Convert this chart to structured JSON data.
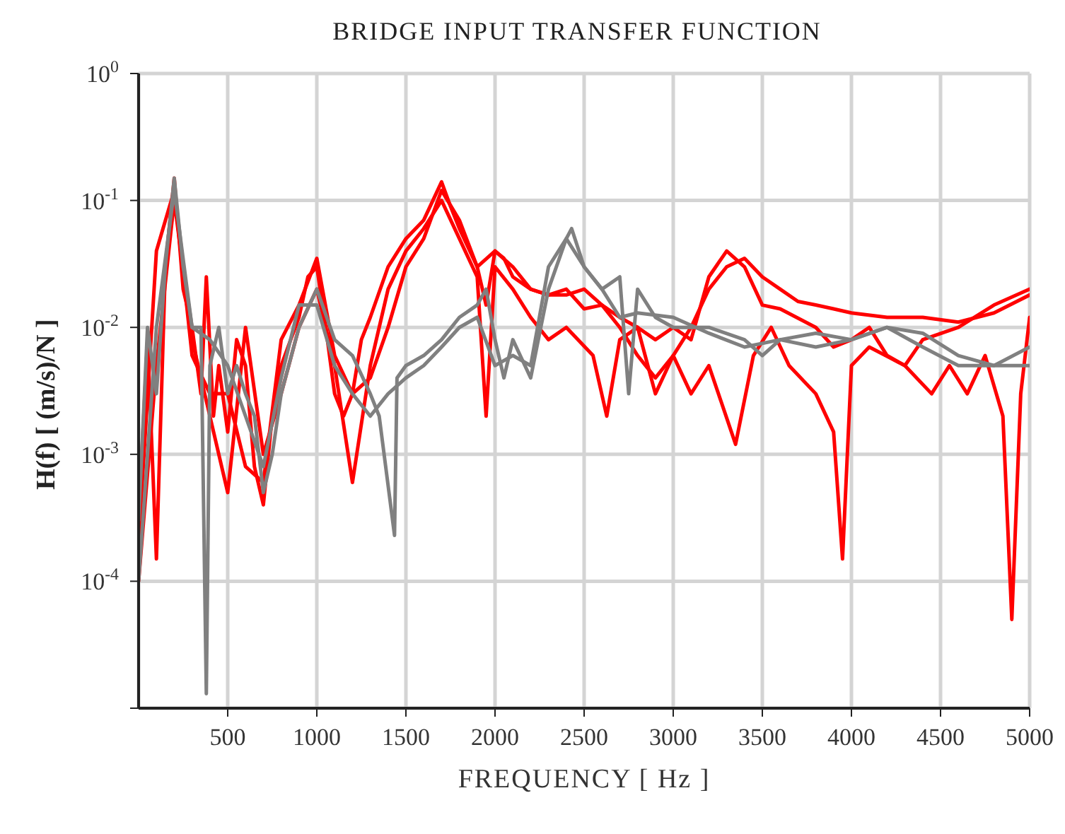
{
  "chart_data": {
    "type": "line",
    "title": "BRIDGE INPUT TRANSFER FUNCTION",
    "xlabel": "FREQUENCY [ Hz ]",
    "ylabel": "H(f) [ (m/s)/N ]",
    "xlim": [
      0,
      5000
    ],
    "xticks": [
      500,
      1000,
      1500,
      2000,
      2500,
      3000,
      3500,
      4000,
      4500,
      5000
    ],
    "ylim": [
      1e-05,
      1
    ],
    "log": "y",
    "yticks": [
      {
        "value": 1e-05,
        "label": null
      },
      {
        "value": 0.0001,
        "label": "10$^{-4}$"
      },
      {
        "value": 0.001,
        "label": "10$^{-3}$"
      },
      {
        "value": 0.01,
        "label": "10$^{-2}$"
      },
      {
        "value": 0.1,
        "label": "10$^{-1}$"
      },
      {
        "value": 1,
        "label": "10$^{0}$"
      }
    ],
    "grid": true,
    "legend": false,
    "marker": "none",
    "line_style": "solid",
    "series": [
      {
        "color": "#ff0000",
        "x": [
          0,
          50,
          100,
          150,
          200,
          250,
          300,
          350,
          380,
          420,
          450,
          500,
          550,
          600,
          650,
          700,
          750,
          800,
          900,
          950,
          1000,
          1050,
          1100,
          1150,
          1200,
          1250,
          1300,
          1400,
          1500,
          1600,
          1700,
          1750,
          1800,
          1900,
          1950,
          2000,
          2050,
          2100,
          2200,
          2300,
          2400,
          2500,
          2600,
          2700,
          2800,
          2900,
          3000,
          3100,
          3200,
          3300,
          3400,
          3500,
          3600,
          3700,
          3800,
          3900,
          4000,
          4200,
          4400,
          4600,
          4800,
          5000
        ],
        "values": [
          0.0003,
          0.008,
          0.00015,
          0.03,
          0.15,
          0.02,
          0.01,
          0.003,
          0.025,
          0.002,
          0.005,
          0.0015,
          0.008,
          0.005,
          0.0008,
          0.0004,
          0.002,
          0.005,
          0.012,
          0.025,
          0.03,
          0.01,
          0.003,
          0.002,
          0.003,
          0.008,
          0.012,
          0.03,
          0.05,
          0.07,
          0.14,
          0.09,
          0.06,
          0.03,
          0.015,
          0.04,
          0.035,
          0.025,
          0.02,
          0.018,
          0.018,
          0.02,
          0.015,
          0.01,
          0.006,
          0.004,
          0.006,
          0.01,
          0.02,
          0.03,
          0.035,
          0.025,
          0.02,
          0.016,
          0.015,
          0.014,
          0.013,
          0.012,
          0.012,
          0.011,
          0.013,
          0.018
        ]
      },
      {
        "color": "#ff0000",
        "x": [
          0,
          100,
          200,
          300,
          400,
          500,
          600,
          700,
          800,
          900,
          1000,
          1100,
          1200,
          1300,
          1400,
          1500,
          1600,
          1700,
          1800,
          1900,
          1950,
          2000,
          2100,
          2200,
          2300,
          2400,
          2550,
          2627,
          2700,
          2800,
          2900,
          3000,
          3100,
          3200,
          3350,
          3450,
          3550,
          3650,
          3800,
          3900,
          3950,
          4000,
          4100,
          4300,
          4450,
          4550,
          4650,
          4750,
          4850,
          4900,
          4950,
          5000
        ],
        "values": [
          0.0001,
          0.005,
          0.1,
          0.008,
          0.002,
          0.0005,
          0.01,
          0.001,
          0.003,
          0.01,
          0.02,
          0.005,
          0.0006,
          0.005,
          0.02,
          0.04,
          0.06,
          0.1,
          0.05,
          0.025,
          0.002,
          0.03,
          0.02,
          0.012,
          0.008,
          0.01,
          0.006,
          0.002,
          0.008,
          0.01,
          0.003,
          0.006,
          0.003,
          0.005,
          0.0012,
          0.006,
          0.01,
          0.005,
          0.003,
          0.0015,
          0.00015,
          0.005,
          0.007,
          0.005,
          0.003,
          0.005,
          0.003,
          0.006,
          0.002,
          5e-05,
          0.003,
          0.012
        ]
      },
      {
        "color": "#ff0000",
        "x": [
          0,
          100,
          200,
          300,
          400,
          500,
          600,
          700,
          800,
          900,
          1000,
          1100,
          1200,
          1300,
          1400,
          1500,
          1600,
          1700,
          1800,
          1900,
          2000,
          2100,
          2200,
          2300,
          2400,
          2500,
          2600,
          2700,
          2800,
          2900,
          3000,
          3100,
          3200,
          3300,
          3400,
          3500,
          3600,
          3800,
          3900,
          4000,
          4100,
          4200,
          4300,
          4400,
          4600,
          4800,
          5000
        ],
        "values": [
          0.0002,
          0.04,
          0.12,
          0.006,
          0.003,
          0.003,
          0.0008,
          0.0006,
          0.008,
          0.015,
          0.035,
          0.006,
          0.003,
          0.004,
          0.01,
          0.03,
          0.05,
          0.12,
          0.07,
          0.03,
          0.04,
          0.03,
          0.02,
          0.018,
          0.02,
          0.014,
          0.015,
          0.012,
          0.01,
          0.008,
          0.01,
          0.008,
          0.025,
          0.04,
          0.03,
          0.015,
          0.014,
          0.01,
          0.007,
          0.008,
          0.01,
          0.006,
          0.005,
          0.008,
          0.01,
          0.015,
          0.02
        ]
      },
      {
        "color": "#808080",
        "x": [
          0,
          50,
          100,
          150,
          200,
          250,
          300,
          350,
          380,
          400,
          450,
          500,
          550,
          600,
          650,
          700,
          750,
          800,
          900,
          1000,
          1100,
          1200,
          1300,
          1350,
          1436,
          1450,
          1500,
          1600,
          1700,
          1800,
          1900,
          1950,
          2000,
          2050,
          2100,
          2200,
          2300,
          2400,
          2430,
          2500,
          2600,
          2700,
          2750,
          2800,
          2900,
          3000,
          3200,
          3400,
          3500,
          3600,
          3800,
          4000,
          4200,
          4400,
          4600,
          4800,
          5000
        ],
        "values": [
          0.0003,
          0.01,
          0.003,
          0.03,
          0.15,
          0.03,
          0.01,
          0.01,
          1.3e-05,
          0.005,
          0.01,
          0.003,
          0.005,
          0.003,
          0.002,
          0.0005,
          0.001,
          0.003,
          0.01,
          0.02,
          0.008,
          0.006,
          0.003,
          0.002,
          0.00023,
          0.004,
          0.005,
          0.006,
          0.008,
          0.012,
          0.015,
          0.02,
          0.008,
          0.004,
          0.008,
          0.004,
          0.02,
          0.05,
          0.06,
          0.03,
          0.02,
          0.025,
          0.003,
          0.02,
          0.012,
          0.01,
          0.01,
          0.008,
          0.006,
          0.008,
          0.009,
          0.008,
          0.01,
          0.009,
          0.006,
          0.005,
          0.007
        ]
      },
      {
        "color": "#808080",
        "x": [
          0,
          100,
          200,
          300,
          400,
          500,
          600,
          700,
          800,
          900,
          1000,
          1100,
          1200,
          1300,
          1400,
          1500,
          1600,
          1700,
          1800,
          1900,
          2000,
          2100,
          2200,
          2300,
          2400,
          2500,
          2600,
          2700,
          2800,
          3000,
          3200,
          3400,
          3600,
          3800,
          4000,
          4200,
          4400,
          4600,
          4800,
          5000
        ],
        "values": [
          0.0001,
          0.01,
          0.12,
          0.01,
          0.008,
          0.005,
          0.002,
          0.0008,
          0.004,
          0.015,
          0.015,
          0.005,
          0.003,
          0.002,
          0.003,
          0.004,
          0.005,
          0.007,
          0.01,
          0.012,
          0.005,
          0.006,
          0.005,
          0.03,
          0.05,
          0.03,
          0.02,
          0.012,
          0.013,
          0.012,
          0.009,
          0.007,
          0.008,
          0.007,
          0.008,
          0.01,
          0.007,
          0.005,
          0.005,
          0.005
        ]
      }
    ]
  }
}
